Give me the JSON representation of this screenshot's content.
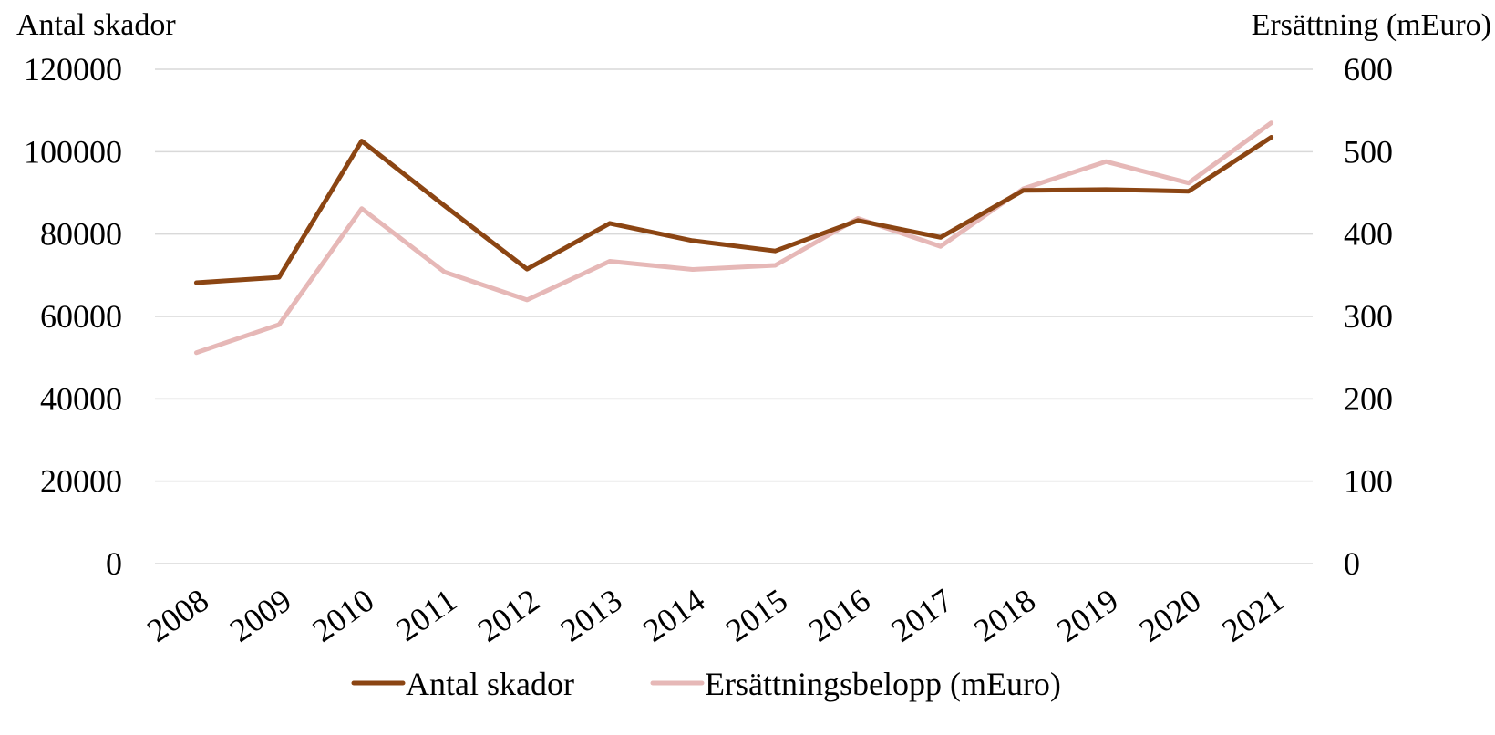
{
  "chart_data": {
    "type": "line",
    "categories": [
      "2008",
      "2009",
      "2010",
      "2011",
      "2012",
      "2013",
      "2014",
      "2015",
      "2016",
      "2017",
      "2018",
      "2019",
      "2020",
      "2021"
    ],
    "series": [
      {
        "name": "Antal skador",
        "axis": "left",
        "color": "#8B4513",
        "values": [
          68200,
          69500,
          102600,
          86900,
          71500,
          82600,
          78400,
          75900,
          83300,
          79200,
          90600,
          90800,
          90400,
          103500
        ]
      },
      {
        "name": "Ersättningsbelopp (mEuro)",
        "axis": "right",
        "color": "#E6B8B7",
        "values": [
          256,
          290,
          431,
          354,
          320,
          367,
          357,
          362,
          419,
          385,
          455,
          488,
          462,
          535
        ]
      }
    ],
    "y_left": {
      "label": "Antal skador",
      "ylim": [
        0,
        120000
      ],
      "ticks": [
        "0",
        "20000",
        "40000",
        "60000",
        "80000",
        "100000",
        "120000"
      ]
    },
    "y_right": {
      "label": "Ersättning (mEuro)",
      "ylim": [
        0,
        600
      ],
      "ticks": [
        "0",
        "100",
        "200",
        "300",
        "400",
        "500",
        "600"
      ]
    },
    "grid": true,
    "legend_position": "bottom"
  }
}
